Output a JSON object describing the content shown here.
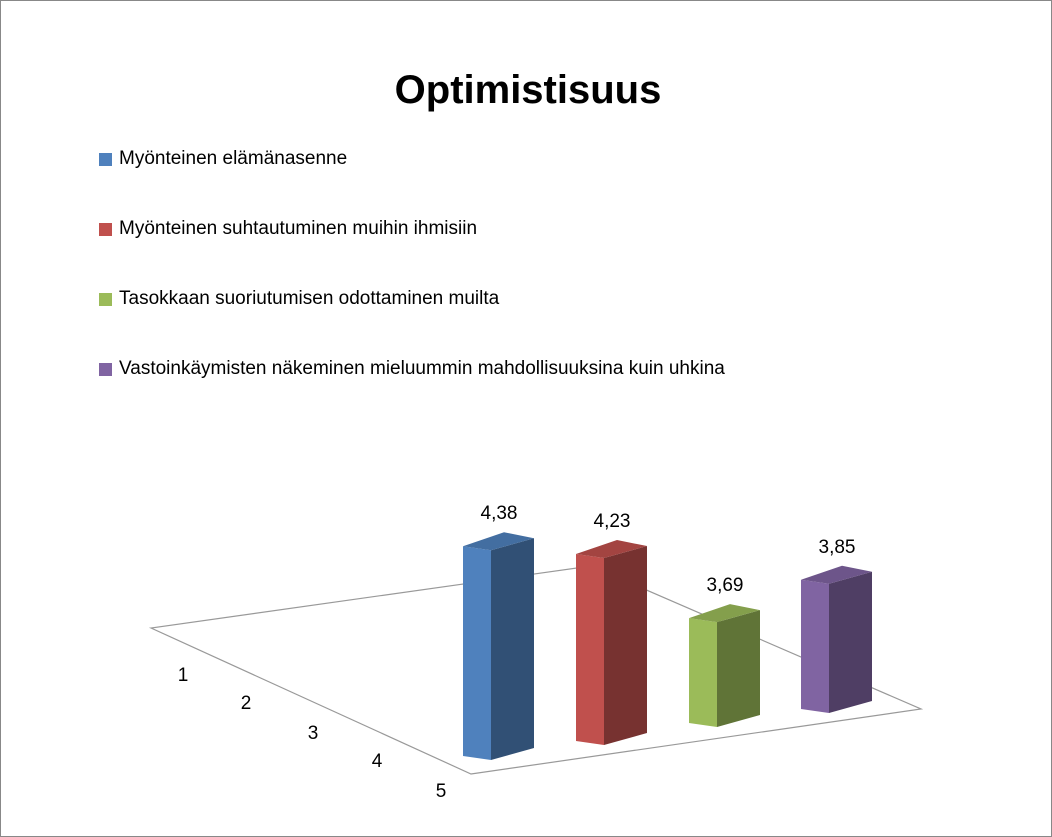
{
  "chart_data": {
    "type": "bar3d",
    "title": "Optimistisuus",
    "series": [
      {
        "name": "Myönteinen elämänasenne",
        "color": "#4f81bd",
        "values": [
          4.38
        ],
        "value_labels": [
          "4,38"
        ]
      },
      {
        "name": "Myönteinen suhtautuminen muihin ihmisiin",
        "color": "#c0504d",
        "values": [
          4.23
        ],
        "value_labels": [
          "4,23"
        ]
      },
      {
        "name": "Tasokkaan suoriutumisen odottaminen muilta",
        "color": "#9bbb59",
        "values": [
          3.69
        ],
        "value_labels": [
          "3,69"
        ]
      },
      {
        "name": "Vastoinkäymisten näkeminen mieluummin mahdollisuuksina kuin uhkina",
        "color": "#8064a2",
        "values": [
          3.85
        ],
        "value_labels": [
          "3,85"
        ]
      }
    ],
    "depth_labels": [
      1,
      2,
      3,
      4,
      5
    ],
    "ylim": [
      3,
      4.5
    ]
  }
}
